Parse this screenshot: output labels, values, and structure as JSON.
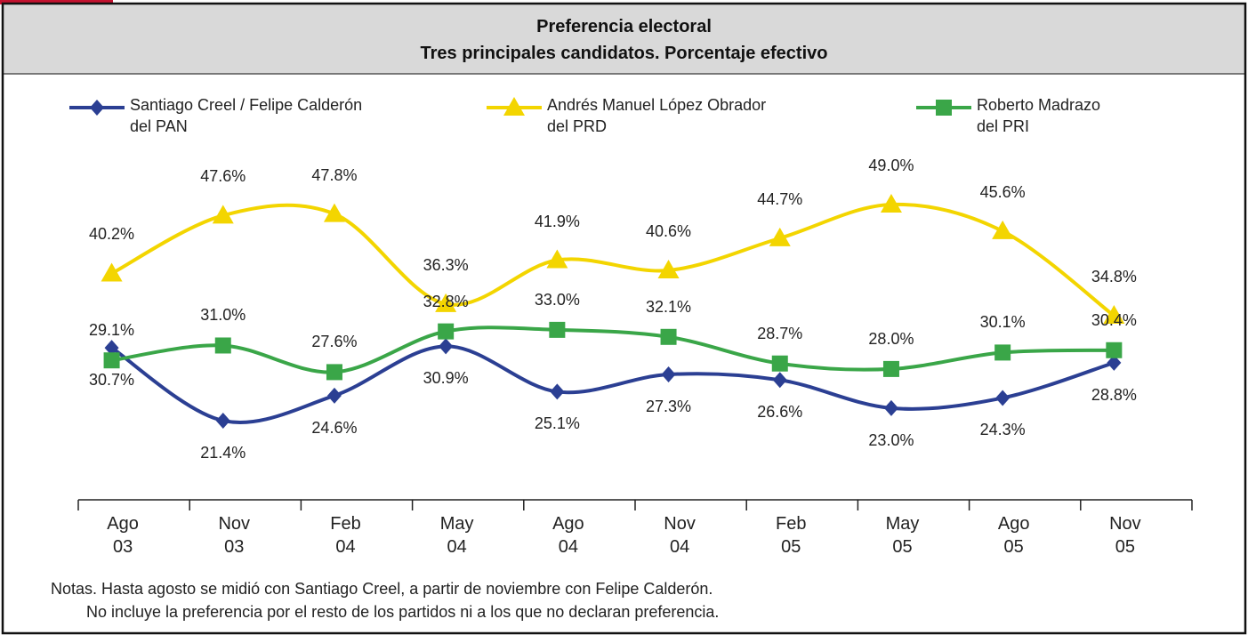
{
  "chart_data": {
    "type": "line",
    "title": "Preferencia electoral",
    "subtitle": "Tres principales candidatos. Porcentaje efectivo",
    "categories": [
      "Ago\n03",
      "Nov\n03",
      "Feb\n04",
      "May\n04",
      "Ago\n04",
      "Nov\n04",
      "Feb\n05",
      "May\n05",
      "Ago\n05",
      "Nov\n05"
    ],
    "series": [
      {
        "name": "Santiago Creel / Felipe Calderón\ndel PAN",
        "color": "#2b3f93",
        "marker": "diamond",
        "values": [
          30.7,
          21.4,
          24.6,
          30.9,
          25.1,
          27.3,
          26.6,
          23.0,
          24.3,
          28.8
        ],
        "value_labels": [
          "30.7%",
          "21.4%",
          "24.6%",
          "30.9%",
          "25.1%",
          "27.3%",
          "26.6%",
          "23.0%",
          "24.3%",
          "28.8%"
        ]
      },
      {
        "name": "Andrés Manuel López Obrador\ndel PRD",
        "color": "#f3d500",
        "marker": "triangle",
        "values": [
          40.2,
          47.6,
          47.8,
          36.3,
          41.9,
          40.6,
          44.7,
          49.0,
          45.6,
          34.8
        ],
        "value_labels": [
          "40.2%",
          "47.6%",
          "47.8%",
          "36.3%",
          "41.9%",
          "40.6%",
          "44.7%",
          "49.0%",
          "45.6%",
          "34.8%"
        ]
      },
      {
        "name": "Roberto Madrazo\ndel PRI",
        "color": "#3aa648",
        "marker": "square",
        "values": [
          29.1,
          31.0,
          27.6,
          32.8,
          33.0,
          32.1,
          28.7,
          28.0,
          30.1,
          30.4
        ],
        "value_labels": [
          "29.1%",
          "31.0%",
          "27.6%",
          "32.8%",
          "33.0%",
          "32.1%",
          "28.7%",
          "28.0%",
          "30.1%",
          "30.4%"
        ]
      }
    ],
    "notes": [
      "Notas. Hasta agosto se midió con Santiago Creel, a partir de noviembre con Felipe Calderón.",
      "No incluye la preferencia por el resto de los partidos ni a los que no declaran preferencia."
    ]
  }
}
